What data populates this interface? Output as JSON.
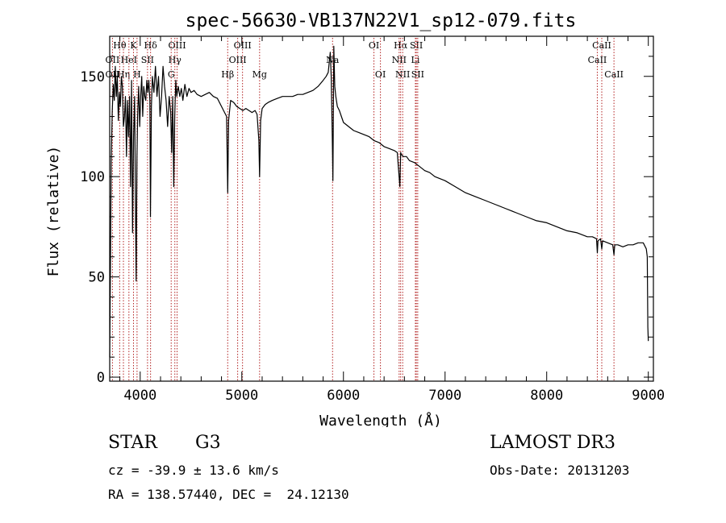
{
  "chart_data": {
    "type": "line",
    "title": "spec-56630-VB137N22V1_sp12-079.fits",
    "xlabel": "Wavelength (Å)",
    "ylabel": "Flux (relative)",
    "xlim": [
      3700,
      9050
    ],
    "ylim": [
      -2,
      170
    ],
    "xticks": [
      4000,
      5000,
      6000,
      7000,
      8000,
      9000
    ],
    "yticks": [
      0,
      50,
      100,
      150
    ],
    "xtick_labels": [
      "4000",
      "5000",
      "6000",
      "7000",
      "8000",
      "9000"
    ],
    "ytick_labels": [
      "0",
      "50",
      "100",
      "150"
    ],
    "series": [
      {
        "name": "flux",
        "x": [
          3700,
          3715,
          3725,
          3735,
          3745,
          3755,
          3765,
          3775,
          3785,
          3795,
          3805,
          3815,
          3825,
          3835,
          3845,
          3855,
          3865,
          3875,
          3885,
          3895,
          3905,
          3915,
          3925,
          3935,
          3945,
          3955,
          3960,
          3968,
          3975,
          3985,
          3995,
          4005,
          4015,
          4025,
          4035,
          4045,
          4055,
          4065,
          4075,
          4085,
          4095,
          4101,
          4110,
          4120,
          4135,
          4150,
          4165,
          4180,
          4195,
          4210,
          4225,
          4240,
          4255,
          4270,
          4285,
          4300,
          4310,
          4320,
          4330,
          4340,
          4350,
          4360,
          4375,
          4390,
          4405,
          4420,
          4440,
          4460,
          4480,
          4500,
          4530,
          4560,
          4600,
          4640,
          4680,
          4720,
          4760,
          4800,
          4830,
          4850,
          4861,
          4870,
          4890,
          4920,
          4950,
          4980,
          5010,
          5040,
          5070,
          5100,
          5130,
          5150,
          5168,
          5175,
          5185,
          5200,
          5230,
          5260,
          5300,
          5350,
          5400,
          5450,
          5500,
          5550,
          5600,
          5650,
          5700,
          5750,
          5800,
          5830,
          5850,
          5870,
          5880,
          5890,
          5896,
          5905,
          5915,
          5925,
          5940,
          5960,
          5980,
          6000,
          6050,
          6100,
          6150,
          6200,
          6250,
          6300,
          6350,
          6400,
          6450,
          6500,
          6530,
          6555,
          6563,
          6570,
          6590,
          6620,
          6650,
          6700,
          6750,
          6800,
          6850,
          6900,
          6950,
          7000,
          7100,
          7200,
          7300,
          7400,
          7500,
          7600,
          7700,
          7800,
          7900,
          8000,
          8100,
          8200,
          8300,
          8400,
          8450,
          8490,
          8498,
          8505,
          8530,
          8542,
          8550,
          8600,
          8650,
          8662,
          8670,
          8700,
          8750,
          8800,
          8850,
          8900,
          8950,
          8980,
          8990,
          8995,
          9000
        ],
        "values": [
          10,
          108,
          132,
          146,
          138,
          155,
          140,
          150,
          128,
          142,
          135,
          150,
          145,
          125,
          130,
          140,
          110,
          138,
          120,
          140,
          95,
          148,
          72,
          120,
          140,
          78,
          48,
          110,
          130,
          145,
          125,
          140,
          150,
          130,
          145,
          140,
          138,
          148,
          142,
          148,
          138,
          80,
          135,
          150,
          142,
          155,
          140,
          150,
          130,
          140,
          155,
          145,
          138,
          125,
          140,
          132,
          112,
          140,
          95,
          130,
          148,
          140,
          145,
          140,
          144,
          138,
          146,
          140,
          144,
          142,
          143,
          141,
          140,
          141,
          142,
          140,
          139,
          135,
          132,
          130,
          92,
          128,
          138,
          137,
          135,
          134,
          133,
          134,
          133,
          132,
          133,
          131,
          118,
          100,
          128,
          134,
          136,
          137,
          138,
          139,
          140,
          140,
          140,
          141,
          141,
          142,
          143,
          145,
          148,
          150,
          152,
          162,
          150,
          120,
          98,
          165,
          145,
          140,
          135,
          133,
          130,
          127,
          125,
          123,
          122,
          121,
          120,
          118,
          117,
          115,
          114,
          113,
          112,
          95,
          112,
          111,
          110,
          110,
          108,
          107,
          105,
          103,
          102,
          100,
          99,
          98,
          95,
          92,
          90,
          88,
          86,
          84,
          82,
          80,
          78,
          77,
          75,
          73,
          72,
          70,
          70,
          69,
          62,
          68,
          69,
          64,
          68,
          67,
          66,
          61,
          66,
          66,
          65,
          66,
          66,
          67,
          67,
          64,
          60,
          25,
          18
        ]
      }
    ],
    "lines": [
      {
        "name": "Hθ",
        "wavelength": 3798,
        "row": 1
      },
      {
        "name": "OII",
        "wavelength": 3727,
        "row": 2
      },
      {
        "name": "OII",
        "wavelength": 3727,
        "row": 3
      },
      {
        "name": "Hη",
        "wavelength": 3835,
        "row": 3
      },
      {
        "name": "HeI",
        "wavelength": 3889,
        "row": 2
      },
      {
        "name": "K",
        "wavelength": 3934,
        "row": 1
      },
      {
        "name": "H",
        "wavelength": 3969,
        "row": 3
      },
      {
        "name": "Hδ",
        "wavelength": 4102,
        "row": 1
      },
      {
        "name": "SII",
        "wavelength": 4072,
        "row": 2
      },
      {
        "name": "OIII",
        "wavelength": 4363,
        "row": 1
      },
      {
        "name": "Hγ",
        "wavelength": 4341,
        "row": 2
      },
      {
        "name": "G",
        "wavelength": 4305,
        "row": 3
      },
      {
        "name": "Hβ",
        "wavelength": 4861,
        "row": 3
      },
      {
        "name": "OIII",
        "wavelength": 5007,
        "row": 1
      },
      {
        "name": "OIII",
        "wavelength": 4959,
        "row": 2
      },
      {
        "name": "Mg",
        "wavelength": 5175,
        "row": 3
      },
      {
        "name": "Na",
        "wavelength": 5893,
        "row": 2
      },
      {
        "name": "OI",
        "wavelength": 6300,
        "row": 1
      },
      {
        "name": "OI",
        "wavelength": 6364,
        "row": 3
      },
      {
        "name": "Hα",
        "wavelength": 6563,
        "row": 1
      },
      {
        "name": "NII",
        "wavelength": 6548,
        "row": 2
      },
      {
        "name": "NII",
        "wavelength": 6583,
        "row": 3
      },
      {
        "name": "SII",
        "wavelength": 6717,
        "row": 1
      },
      {
        "name": "Li",
        "wavelength": 6708,
        "row": 2
      },
      {
        "name": "SII",
        "wavelength": 6731,
        "row": 3
      },
      {
        "name": "CaII",
        "wavelength": 8542,
        "row": 1
      },
      {
        "name": "CaII",
        "wavelength": 8498,
        "row": 2
      },
      {
        "name": "CaII",
        "wavelength": 8662,
        "row": 3
      }
    ]
  },
  "info": {
    "class": "STAR",
    "subclass": "G3",
    "survey": "LAMOST DR3",
    "cz": "cz = -39.9 ± 13.6 km/s",
    "obs_date": "Obs-Date: 20131203",
    "coords": "RA = 138.57440, DEC =  24.12130"
  }
}
